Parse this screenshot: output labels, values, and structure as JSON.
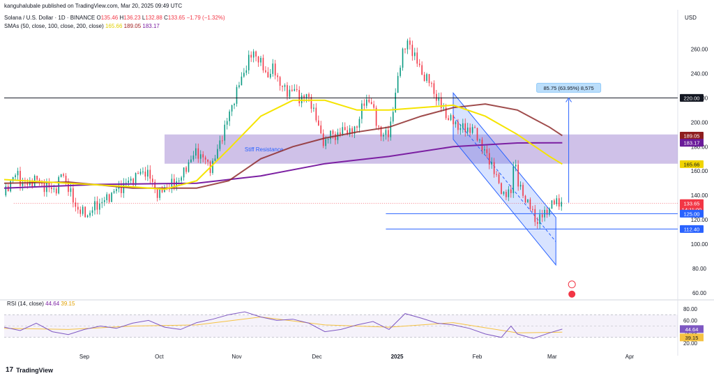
{
  "header": {
    "publisher": "kanguhalubale published on TradingView.com, Mar 20, 2025 09:49 UTC",
    "symbol": "Solana / U.S. Dollar · 1D · BINANCE",
    "o_label": "O",
    "o": "135.46",
    "h_label": "H",
    "h": "136.23",
    "l_label": "L",
    "l": "132.88",
    "c_label": "C",
    "c": "133.65",
    "change": "−1.79 (−1.32%)",
    "sma_label": "SMAs (50, close, 100, close, 200, close)",
    "sma50": "165.66",
    "sma100": "189.05",
    "sma200": "183.17"
  },
  "currency": "USD",
  "rsi_label": "RSI (14, close)",
  "rsi_value": "44.64",
  "rsi_ma_value": "39.15",
  "footer_brand": "TradingView",
  "chart_data": {
    "type": "candlestick",
    "price_axis": {
      "ticks": [
        60,
        80,
        100,
        120,
        140,
        160,
        180,
        200,
        220,
        240,
        260
      ],
      "range": [
        56,
        290
      ]
    },
    "time_axis": {
      "ticks": [
        "Sep",
        "Oct",
        "Nov",
        "Dec",
        "2025",
        "Feb",
        "Mar",
        "Apr"
      ]
    },
    "price_path": [
      [
        0,
        140
      ],
      [
        4,
        152
      ],
      [
        8,
        158
      ],
      [
        11,
        150
      ],
      [
        15,
        148
      ],
      [
        19,
        154
      ],
      [
        22,
        150
      ],
      [
        26,
        147
      ],
      [
        30,
        145
      ],
      [
        33,
        146
      ],
      [
        36,
        160
      ],
      [
        40,
        146
      ],
      [
        44,
        132
      ],
      [
        48,
        126
      ],
      [
        52,
        124
      ],
      [
        56,
        130
      ],
      [
        60,
        134
      ],
      [
        64,
        137
      ],
      [
        68,
        143
      ],
      [
        72,
        146
      ],
      [
        76,
        150
      ],
      [
        80,
        153
      ],
      [
        84,
        158
      ],
      [
        88,
        160
      ],
      [
        92,
        152
      ],
      [
        96,
        140
      ],
      [
        100,
        146
      ],
      [
        104,
        148
      ],
      [
        108,
        152
      ],
      [
        112,
        158
      ],
      [
        116,
        170
      ],
      [
        120,
        175
      ],
      [
        124,
        172
      ],
      [
        128,
        162
      ],
      [
        132,
        172
      ],
      [
        136,
        190
      ],
      [
        140,
        205
      ],
      [
        144,
        222
      ],
      [
        148,
        236
      ],
      [
        152,
        250
      ],
      [
        156,
        258
      ],
      [
        160,
        248
      ],
      [
        164,
        238
      ],
      [
        168,
        244
      ],
      [
        172,
        232
      ],
      [
        176,
        224
      ],
      [
        180,
        228
      ],
      [
        184,
        220
      ],
      [
        188,
        222
      ],
      [
        192,
        215
      ],
      [
        196,
        195
      ],
      [
        200,
        182
      ],
      [
        204,
        192
      ],
      [
        208,
        188
      ],
      [
        212,
        196
      ],
      [
        216,
        190
      ],
      [
        220,
        198
      ],
      [
        224,
        215
      ],
      [
        228,
        220
      ],
      [
        232,
        200
      ],
      [
        236,
        188
      ],
      [
        240,
        192
      ],
      [
        244,
        222
      ],
      [
        248,
        258
      ],
      [
        252,
        265
      ],
      [
        256,
        255
      ],
      [
        260,
        240
      ],
      [
        264,
        236
      ],
      [
        268,
        225
      ],
      [
        272,
        214
      ],
      [
        276,
        205
      ],
      [
        280,
        200
      ],
      [
        284,
        196
      ],
      [
        288,
        194
      ],
      [
        292,
        195
      ],
      [
        296,
        186
      ],
      [
        300,
        174
      ],
      [
        304,
        166
      ],
      [
        308,
        150
      ],
      [
        312,
        140
      ],
      [
        316,
        142
      ],
      [
        318,
        176
      ],
      [
        320,
        150
      ],
      [
        324,
        140
      ],
      [
        328,
        130
      ],
      [
        332,
        118
      ],
      [
        336,
        124
      ],
      [
        340,
        130
      ],
      [
        344,
        136
      ],
      [
        348,
        133.65
      ]
    ],
    "x_max": 420,
    "sma50": [
      [
        0,
        153
      ],
      [
        40,
        150
      ],
      [
        80,
        147
      ],
      [
        100,
        145
      ],
      [
        120,
        152
      ],
      [
        140,
        178
      ],
      [
        160,
        205
      ],
      [
        180,
        218
      ],
      [
        200,
        218
      ],
      [
        220,
        210
      ],
      [
        240,
        210
      ],
      [
        260,
        212
      ],
      [
        280,
        214
      ],
      [
        300,
        205
      ],
      [
        320,
        190
      ],
      [
        340,
        172
      ],
      [
        348,
        165.66
      ]
    ],
    "sma100": [
      [
        0,
        150
      ],
      [
        40,
        151
      ],
      [
        80,
        146
      ],
      [
        120,
        146
      ],
      [
        140,
        152
      ],
      [
        160,
        170
      ],
      [
        180,
        180
      ],
      [
        200,
        187
      ],
      [
        220,
        192
      ],
      [
        240,
        196
      ],
      [
        260,
        205
      ],
      [
        280,
        212
      ],
      [
        300,
        215
      ],
      [
        320,
        210
      ],
      [
        340,
        196
      ],
      [
        348,
        189.05
      ]
    ],
    "sma200": [
      [
        0,
        146
      ],
      [
        60,
        149
      ],
      [
        120,
        150
      ],
      [
        160,
        156
      ],
      [
        200,
        166
      ],
      [
        240,
        172
      ],
      [
        280,
        180
      ],
      [
        320,
        183
      ],
      [
        348,
        183.17
      ]
    ],
    "resistance_zone": {
      "label": "Stiff Resistance",
      "low": 166,
      "high": 190
    },
    "h_level_220": 220,
    "support_125": 125,
    "support_112": 112.4,
    "measure": {
      "label": "85.75 (63.95%) 8,575",
      "from": 134,
      "to": 220
    },
    "price_labels": [
      {
        "value": "220.00",
        "price": 220,
        "color": "#131722"
      },
      {
        "value": "189.05",
        "price": 189.05,
        "color": "#8e1e1e"
      },
      {
        "value": "183.17",
        "price": 183.17,
        "color": "#6a1b9a"
      },
      {
        "value": "165.66",
        "price": 165.66,
        "color": "#f0d400"
      },
      {
        "value": "133.65",
        "price": 133.65,
        "color": "#f23645"
      },
      {
        "value": "14:11:00",
        "price": 128.5,
        "color": "#f23645"
      },
      {
        "value": "125.00",
        "price": 125,
        "color": "#2962ff"
      },
      {
        "value": "112.40",
        "price": 112.4,
        "color": "#2962ff"
      }
    ],
    "rsi_axis": {
      "ticks": [
        20,
        40,
        60,
        80
      ],
      "range": [
        15,
        85
      ],
      "band": [
        30,
        70
      ]
    },
    "rsi": [
      [
        0,
        48
      ],
      [
        10,
        42
      ],
      [
        20,
        55
      ],
      [
        30,
        40
      ],
      [
        40,
        35
      ],
      [
        50,
        44
      ],
      [
        60,
        50
      ],
      [
        70,
        46
      ],
      [
        80,
        55
      ],
      [
        90,
        60
      ],
      [
        100,
        48
      ],
      [
        110,
        44
      ],
      [
        120,
        56
      ],
      [
        130,
        62
      ],
      [
        140,
        70
      ],
      [
        150,
        75
      ],
      [
        160,
        66
      ],
      [
        170,
        60
      ],
      [
        180,
        62
      ],
      [
        190,
        55
      ],
      [
        200,
        40
      ],
      [
        210,
        44
      ],
      [
        220,
        52
      ],
      [
        230,
        58
      ],
      [
        240,
        44
      ],
      [
        250,
        72
      ],
      [
        260,
        64
      ],
      [
        270,
        55
      ],
      [
        280,
        52
      ],
      [
        290,
        46
      ],
      [
        300,
        36
      ],
      [
        310,
        30
      ],
      [
        316,
        50
      ],
      [
        320,
        36
      ],
      [
        330,
        28
      ],
      [
        340,
        38
      ],
      [
        348,
        44.64
      ]
    ],
    "rsi_ma": [
      [
        0,
        46
      ],
      [
        40,
        44
      ],
      [
        80,
        50
      ],
      [
        120,
        52
      ],
      [
        160,
        66
      ],
      [
        200,
        52
      ],
      [
        240,
        48
      ],
      [
        280,
        56
      ],
      [
        320,
        38
      ],
      [
        348,
        39.15
      ]
    ]
  }
}
